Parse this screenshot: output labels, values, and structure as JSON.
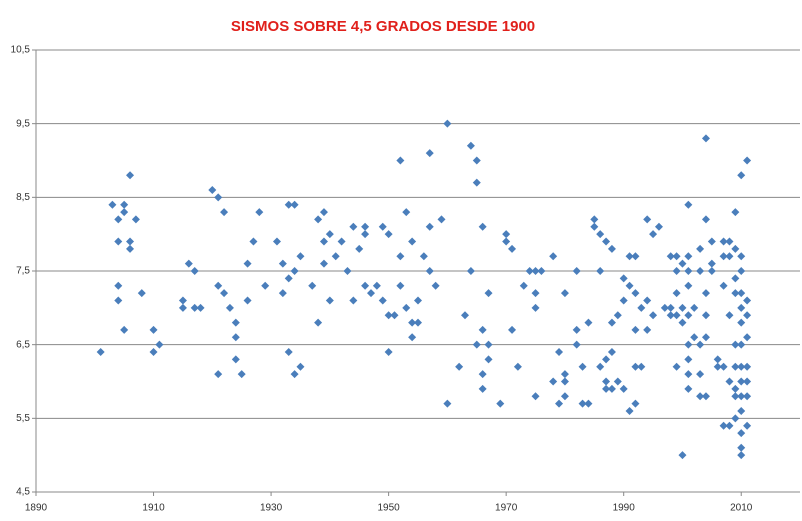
{
  "chart_data": {
    "type": "scatter",
    "title": "SISMOS SOBRE 4,5 GRADOS DESDE 1900",
    "xlim": [
      1890,
      2020
    ],
    "xticks": [
      1890,
      1910,
      1930,
      1950,
      1970,
      1990,
      2010
    ],
    "ylim": [
      4.5,
      10.5
    ],
    "yticks": [
      {
        "value": 4.5,
        "label": "4,5"
      },
      {
        "value": 5.5,
        "label": "5,5"
      },
      {
        "value": 6.5,
        "label": "6,5"
      },
      {
        "value": 7.5,
        "label": "7,5"
      },
      {
        "value": 8.5,
        "label": "8,5"
      },
      {
        "value": 9.5,
        "label": "9,5"
      },
      {
        "value": 10.5,
        "label": "10,5"
      }
    ],
    "grid": true,
    "color": "#4a7ebb",
    "x": [
      1901,
      1903,
      1904,
      1904,
      1904,
      1904,
      1905,
      1905,
      1905,
      1906,
      1906,
      1906,
      1907,
      1908,
      1910,
      1910,
      1911,
      1915,
      1915,
      1916,
      1917,
      1917,
      1918,
      1920,
      1921,
      1921,
      1921,
      1922,
      1922,
      1923,
      1924,
      1924,
      1924,
      1925,
      1926,
      1926,
      1927,
      1928,
      1929,
      1931,
      1932,
      1932,
      1933,
      1933,
      1933,
      1934,
      1934,
      1934,
      1935,
      1935,
      1937,
      1938,
      1938,
      1939,
      1939,
      1939,
      1940,
      1940,
      1941,
      1942,
      1943,
      1944,
      1944,
      1945,
      1946,
      1946,
      1946,
      1947,
      1948,
      1949,
      1949,
      1950,
      1950,
      1950,
      1951,
      1952,
      1952,
      1952,
      1953,
      1953,
      1954,
      1954,
      1954,
      1955,
      1955,
      1956,
      1957,
      1957,
      1957,
      1958,
      1959,
      1960,
      1960,
      1962,
      1963,
      1964,
      1964,
      1965,
      1965,
      1965,
      1966,
      1966,
      1966,
      1966,
      1967,
      1967,
      1967,
      1969,
      1970,
      1970,
      1971,
      1971,
      1972,
      1973,
      1974,
      1975,
      1975,
      1975,
      1975,
      1976,
      1978,
      1978,
      1979,
      1979,
      1980,
      1980,
      1980,
      1980,
      1982,
      1982,
      1982,
      1983,
      1983,
      1984,
      1984,
      1985,
      1985,
      1986,
      1986,
      1986,
      1987,
      1987,
      1987,
      1987,
      1988,
      1988,
      1988,
      1988,
      1989,
      1989,
      1990,
      1990,
      1990,
      1991,
      1991,
      1991,
      1992,
      1992,
      1992,
      1992,
      1992,
      1993,
      1993,
      1994,
      1994,
      1994,
      1995,
      1995,
      1996,
      1997,
      1998,
      1998,
      1998,
      1999,
      1999,
      1999,
      1999,
      1999,
      2000,
      2000,
      2000,
      2000,
      2001,
      2001,
      2001,
      2001,
      2001,
      2001,
      2001,
      2001,
      2001,
      2002,
      2002,
      2003,
      2003,
      2003,
      2003,
      2003,
      2004,
      2004,
      2004,
      2004,
      2004,
      2004,
      2005,
      2005,
      2005,
      2006,
      2006,
      2007,
      2007,
      2007,
      2007,
      2007,
      2008,
      2008,
      2008,
      2008,
      2008,
      2009,
      2009,
      2009,
      2009,
      2009,
      2009,
      2009,
      2009,
      2009,
      2010,
      2010,
      2010,
      2010,
      2010,
      2010,
      2010,
      2010,
      2010,
      2010,
      2010,
      2010,
      2010,
      2010,
      2011,
      2011,
      2011,
      2011,
      2011,
      2011,
      2011,
      2011
    ],
    "values": [
      6.4,
      8.4,
      8.2,
      7.9,
      7.3,
      7.1,
      8.4,
      8.3,
      6.7,
      8.8,
      7.9,
      7.8,
      8.2,
      7.2,
      6.7,
      6.4,
      6.5,
      7.1,
      7.0,
      7.6,
      7.5,
      7.0,
      7.0,
      8.6,
      8.5,
      7.3,
      6.1,
      8.3,
      7.2,
      7.0,
      6.8,
      6.6,
      6.3,
      6.1,
      7.6,
      7.1,
      7.9,
      8.3,
      7.3,
      7.9,
      7.6,
      7.2,
      8.4,
      7.4,
      6.4,
      8.4,
      7.5,
      6.1,
      7.7,
      6.2,
      7.3,
      8.2,
      6.8,
      8.3,
      7.9,
      7.6,
      8.0,
      7.1,
      7.7,
      7.9,
      7.5,
      8.1,
      7.1,
      7.8,
      8.1,
      8.0,
      7.3,
      7.2,
      7.3,
      8.1,
      7.1,
      8.0,
      6.9,
      6.4,
      6.9,
      9.0,
      7.7,
      7.3,
      8.3,
      7.0,
      7.9,
      6.8,
      6.6,
      7.1,
      6.8,
      7.7,
      9.1,
      8.1,
      7.5,
      7.3,
      8.2,
      9.5,
      5.7,
      6.2,
      6.9,
      9.2,
      7.5,
      9.0,
      8.7,
      6.5,
      8.1,
      6.7,
      6.1,
      5.9,
      7.2,
      6.5,
      6.3,
      5.7,
      8.0,
      7.9,
      7.8,
      6.7,
      6.2,
      7.3,
      7.5,
      7.5,
      7.2,
      7.0,
      5.8,
      7.5,
      7.7,
      6.0,
      6.4,
      5.7,
      7.2,
      6.1,
      6.0,
      5.8,
      7.5,
      6.7,
      6.5,
      6.2,
      5.7,
      6.8,
      5.7,
      8.2,
      8.1,
      8.0,
      7.5,
      6.2,
      7.9,
      6.3,
      6.0,
      5.9,
      7.8,
      6.8,
      6.4,
      5.9,
      6.9,
      6.0,
      7.4,
      7.1,
      5.9,
      7.7,
      7.3,
      5.6,
      7.7,
      7.2,
      6.7,
      6.2,
      5.7,
      6.2,
      7.0,
      8.2,
      7.1,
      6.7,
      8.0,
      6.9,
      8.1,
      7.0,
      7.7,
      7.0,
      6.9,
      7.7,
      7.5,
      7.2,
      6.9,
      6.2,
      7.6,
      7.0,
      6.8,
      5.0,
      8.4,
      7.7,
      7.5,
      7.3,
      6.9,
      6.5,
      6.3,
      6.1,
      5.9,
      7.0,
      6.6,
      7.8,
      7.5,
      6.5,
      6.1,
      5.8,
      9.3,
      8.2,
      7.2,
      6.9,
      6.6,
      5.8,
      7.9,
      7.5,
      7.6,
      6.3,
      6.2,
      7.9,
      7.7,
      7.3,
      6.2,
      5.4,
      7.9,
      7.7,
      6.9,
      6.0,
      5.4,
      8.3,
      7.8,
      7.4,
      7.2,
      6.5,
      6.2,
      5.9,
      5.5,
      5.8,
      8.8,
      7.7,
      7.5,
      7.2,
      7.0,
      6.8,
      6.5,
      6.2,
      6.0,
      5.8,
      5.6,
      5.3,
      5.1,
      5.0,
      9.0,
      7.1,
      6.9,
      6.6,
      6.2,
      6.0,
      5.8,
      5.4
    ]
  }
}
